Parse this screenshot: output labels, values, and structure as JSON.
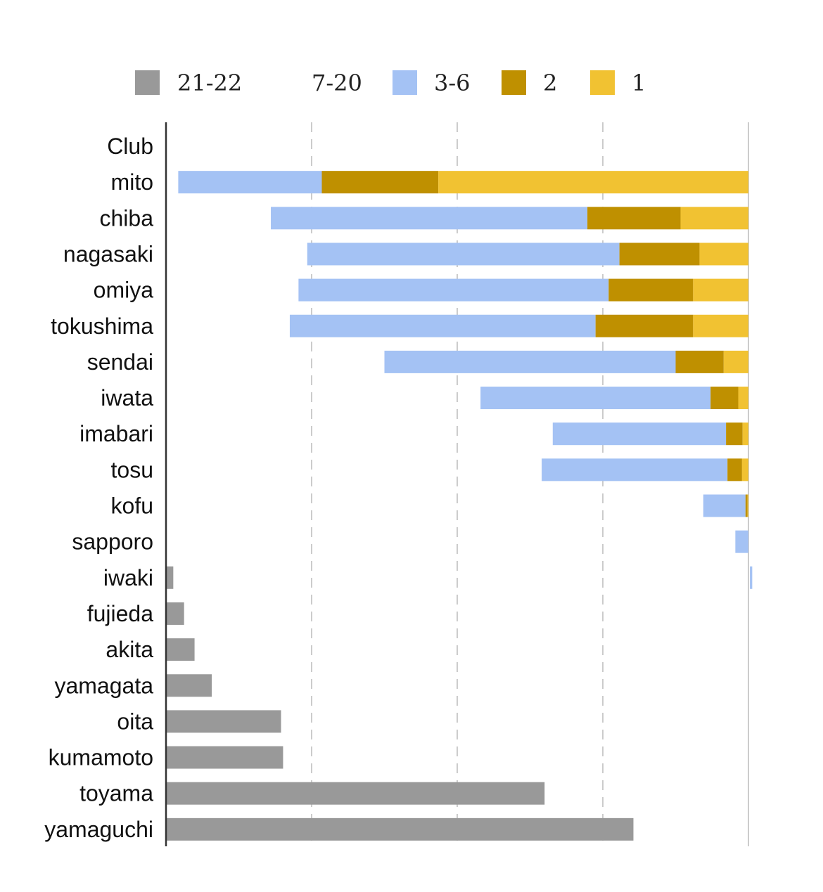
{
  "chart_data": {
    "type": "bar",
    "orientation": "horizontal",
    "stacked": true,
    "categories": [
      "Club",
      "mito",
      "chiba",
      "nagasaki",
      "omiya",
      "tokushima",
      "sendai",
      "iwata",
      "imabari",
      "tosu",
      "kofu",
      "sapporo",
      "iwaki",
      "fujieda",
      "akita",
      "yamagata",
      "oita",
      "kumamoto",
      "toyama",
      "yamaguchi"
    ],
    "series": [
      {
        "name": "21-22",
        "color": "#999999",
        "values": [
          0,
          0,
          0,
          0,
          0,
          0,
          0,
          0,
          0,
          0,
          0,
          0,
          0.25,
          0.62,
          0.98,
          1.57,
          3.95,
          4.02,
          13.0,
          16.05
        ]
      },
      {
        "name": "7-20",
        "color": "#ffffff",
        "values": [
          0,
          0.42,
          3.6,
          4.85,
          4.55,
          4.25,
          7.5,
          10.8,
          13.28,
          12.9,
          18.45,
          19.55,
          19.8,
          0,
          0,
          0,
          0,
          0,
          0,
          0
        ]
      },
      {
        "name": "3-6",
        "color": "#a4c2f4",
        "values": [
          0,
          4.93,
          10.87,
          10.72,
          10.65,
          10.5,
          10.0,
          7.9,
          5.95,
          6.38,
          1.45,
          0.45,
          0.08,
          0,
          0,
          0,
          0,
          0,
          0,
          0
        ]
      },
      {
        "name": "2",
        "color": "#bf9000",
        "values": [
          0,
          4.0,
          3.2,
          2.75,
          2.9,
          3.35,
          1.65,
          0.95,
          0.57,
          0.5,
          0.07,
          0,
          0,
          0,
          0,
          0,
          0,
          0,
          0,
          0
        ]
      },
      {
        "name": "1",
        "color": "#f1c232",
        "values": [
          0,
          10.65,
          2.33,
          1.68,
          1.9,
          1.9,
          0.85,
          0.35,
          0.2,
          0.22,
          0.03,
          0,
          0,
          0,
          0,
          0,
          0,
          0,
          0,
          0
        ]
      }
    ],
    "xlim": [
      0,
      20
    ],
    "x_gridlines": [
      5,
      10,
      15,
      20
    ],
    "tick_labels_shown": false,
    "legend_position": "top",
    "grid": true
  }
}
